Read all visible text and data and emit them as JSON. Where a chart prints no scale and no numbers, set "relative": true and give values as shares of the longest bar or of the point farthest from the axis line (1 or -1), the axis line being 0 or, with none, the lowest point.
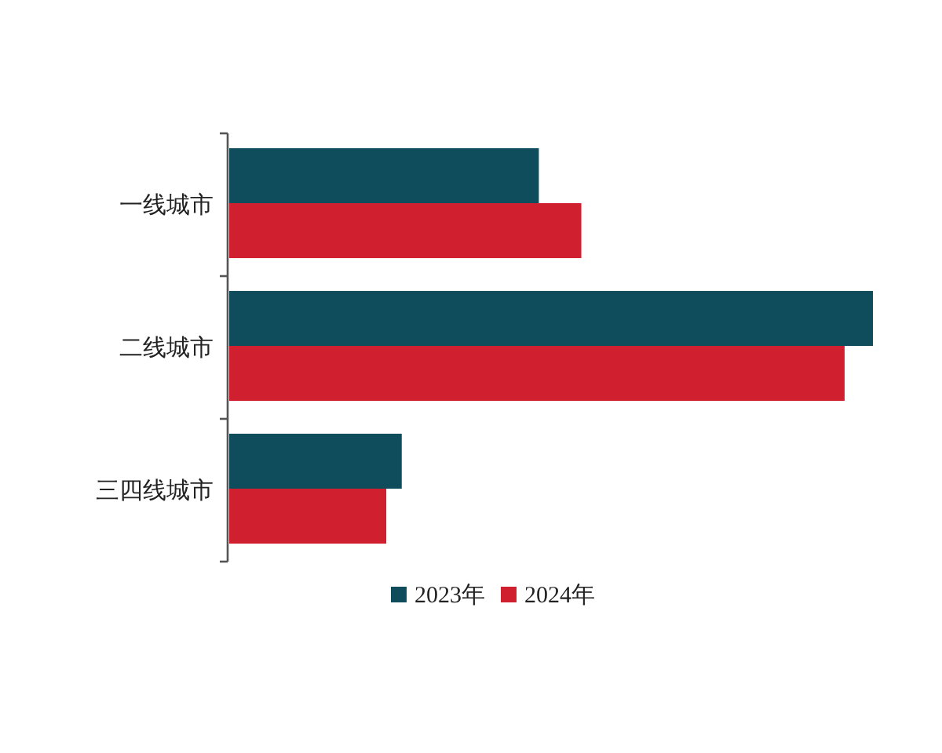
{
  "chart_data": {
    "type": "bar",
    "orientation": "horizontal",
    "relative": true,
    "categories": [
      "一线城市",
      "二线城市",
      "三四线城市"
    ],
    "series": [
      {
        "name": "2023年",
        "color": "#0f4c5c",
        "values": [
          0.481,
          1,
          0.268
        ]
      },
      {
        "name": "2024年",
        "color": "#d0202f",
        "values": [
          0.547,
          0.956,
          0.244
        ]
      }
    ],
    "legend": "bottom"
  }
}
